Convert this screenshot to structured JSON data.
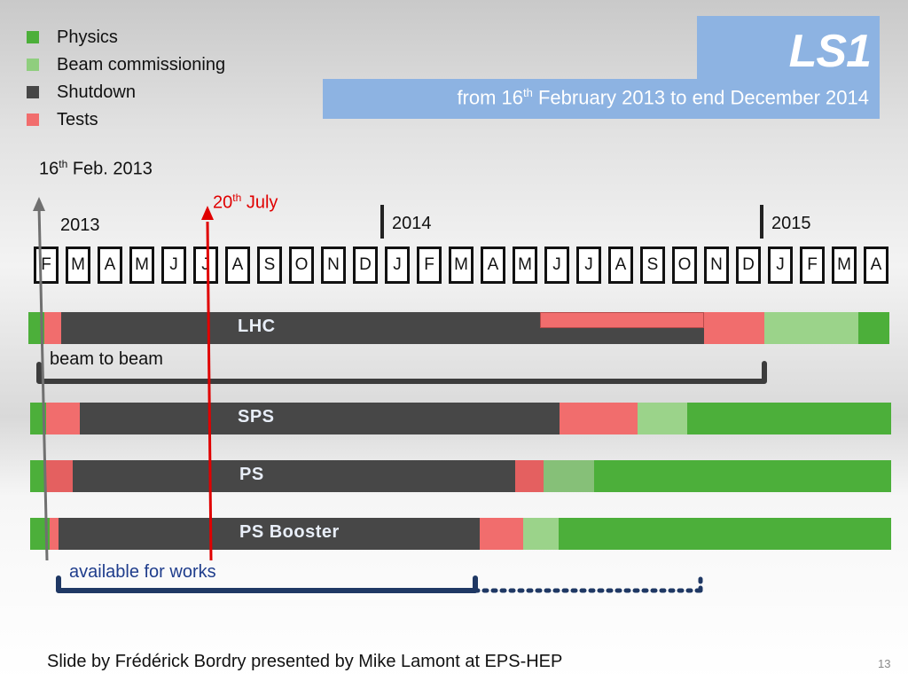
{
  "legend": [
    {
      "label": "Physics",
      "color": "#4caf3a"
    },
    {
      "label": "Beam commissioning",
      "color": "#8fce7e"
    },
    {
      "label": "Shutdown",
      "color": "#474747"
    },
    {
      "label": "Tests",
      "color": "#f16d6d"
    }
  ],
  "header": {
    "title": "LS1",
    "period_from": "from 16",
    "period_from_sup": "th",
    "period_rest": " February 2013 to end December 2014"
  },
  "markers": {
    "start_day": "16",
    "start_sup": "th",
    "start_rest": " Feb. 2013",
    "july_day": "20",
    "july_sup": "th",
    "july_rest": " July"
  },
  "years": [
    "2013",
    "2014",
    "2015"
  ],
  "months": [
    "F",
    "M",
    "A",
    "M",
    "J",
    "J",
    "A",
    "S",
    "O",
    "N",
    "D",
    "J",
    "F",
    "M",
    "A",
    "M",
    "J",
    "J",
    "A",
    "S",
    "O",
    "N",
    "D",
    "J",
    "F",
    "M",
    "A"
  ],
  "machines": [
    {
      "name": "LHC"
    },
    {
      "name": "SPS"
    },
    {
      "name": "PS"
    },
    {
      "name": "PS Booster"
    }
  ],
  "annotations": {
    "beam_to_beam": "beam to beam",
    "available_for_works": "available for works"
  },
  "footer": {
    "credit": "Slide by Frédérick Bordry  presented by Mike Lamont at EPS-HEP",
    "page_number": "13"
  }
}
